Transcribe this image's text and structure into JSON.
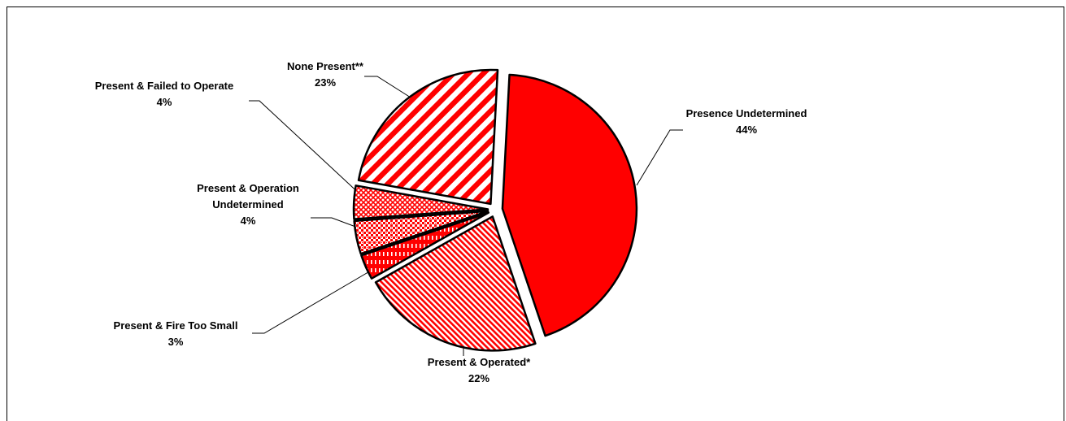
{
  "chart_data": {
    "type": "pie",
    "title": "",
    "slices": [
      {
        "label_lines": [
          "Presence Undetermined"
        ],
        "value": 44,
        "value_text": "44%",
        "pattern": "solid",
        "exploded": true
      },
      {
        "label_lines": [
          "Present & Operated*"
        ],
        "value": 22,
        "value_text": "22%",
        "pattern": "fine-diagonal",
        "exploded": true
      },
      {
        "label_lines": [
          "Present & Fire Too Small"
        ],
        "value": 3,
        "value_text": "3%",
        "pattern": "vertical-dash",
        "exploded": true
      },
      {
        "label_lines": [
          "Present & Operation",
          "Undetermined"
        ],
        "value": 4,
        "value_text": "4%",
        "pattern": "dots",
        "exploded": true
      },
      {
        "label_lines": [
          "Present & Failed to Operate"
        ],
        "value": 4,
        "value_text": "4%",
        "pattern": "crosshatch",
        "exploded": true
      },
      {
        "label_lines": [
          "None Present**"
        ],
        "value": 23,
        "value_text": "23%",
        "pattern": "wide-diagonal",
        "exploded": true
      }
    ],
    "colors": {
      "fill": "#ff0000",
      "background": "#ffffff",
      "outline": "#000000"
    },
    "legend": "none",
    "data_labels": "outside-with-leader-lines"
  }
}
